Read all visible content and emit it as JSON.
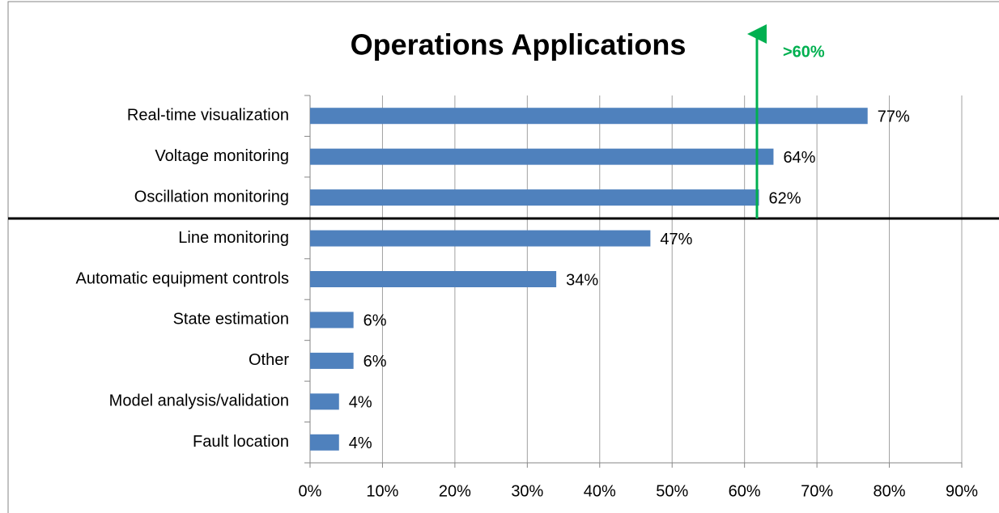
{
  "chart_data": {
    "type": "bar",
    "orientation": "horizontal",
    "title": "Operations Applications",
    "annotation": ">60%",
    "categories": [
      "Real-time visualization",
      "Voltage monitoring",
      "Oscillation monitoring",
      "Line monitoring",
      "Automatic equipment controls",
      "State estimation",
      "Other",
      "Model analysis/validation",
      "Fault location"
    ],
    "values": [
      77,
      64,
      62,
      47,
      34,
      6,
      6,
      4,
      4
    ],
    "value_labels": [
      "77%",
      "64%",
      "62%",
      "47%",
      "34%",
      "6%",
      "6%",
      "4%",
      "4%"
    ],
    "color": "#4f81bd",
    "xlim": [
      0,
      90
    ],
    "xticks": [
      {
        "value": 0,
        "label": "0%"
      },
      {
        "value": 10,
        "label": "10%"
      },
      {
        "value": 20,
        "label": "20%"
      },
      {
        "value": 30,
        "label": "30%"
      },
      {
        "value": 40,
        "label": "40%"
      },
      {
        "value": 50,
        "label": "50%"
      },
      {
        "value": 60,
        "label": "60%"
      },
      {
        "value": 70,
        "label": "70%"
      },
      {
        "value": 80,
        "label": "80%"
      },
      {
        "value": 90,
        "label": "90%"
      }
    ],
    "grid": true
  }
}
